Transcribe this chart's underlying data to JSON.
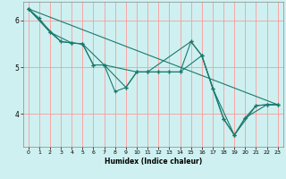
{
  "xlabel": "Humidex (Indice chaleur)",
  "bg_color": "#cff0f0",
  "line_color": "#1a7a6e",
  "grid_color": "#ff9999",
  "xlim": [
    -0.5,
    23.5
  ],
  "ylim": [
    3.3,
    6.4
  ],
  "xticks": [
    0,
    1,
    2,
    3,
    4,
    5,
    6,
    7,
    8,
    9,
    10,
    11,
    12,
    13,
    14,
    15,
    16,
    17,
    18,
    19,
    20,
    21,
    22,
    23
  ],
  "yticks": [
    4,
    5,
    6
  ],
  "series1": [
    [
      0,
      6.25
    ],
    [
      1,
      6.05
    ],
    [
      2,
      5.75
    ],
    [
      3,
      5.55
    ],
    [
      4,
      5.52
    ],
    [
      5,
      5.5
    ],
    [
      6,
      5.05
    ],
    [
      7,
      5.05
    ],
    [
      8,
      4.48
    ],
    [
      9,
      4.57
    ],
    [
      10,
      4.9
    ],
    [
      11,
      4.9
    ],
    [
      12,
      4.9
    ],
    [
      13,
      4.9
    ],
    [
      14,
      4.9
    ],
    [
      15,
      5.55
    ],
    [
      16,
      5.25
    ],
    [
      17,
      4.55
    ],
    [
      18,
      3.9
    ],
    [
      19,
      3.55
    ],
    [
      20,
      3.92
    ],
    [
      21,
      4.18
    ],
    [
      22,
      4.2
    ],
    [
      23,
      4.2
    ]
  ],
  "series2": [
    [
      0,
      6.25
    ],
    [
      2,
      5.75
    ],
    [
      4,
      5.52
    ],
    [
      5,
      5.5
    ],
    [
      6,
      5.05
    ],
    [
      7,
      5.05
    ],
    [
      10,
      4.9
    ],
    [
      11,
      4.9
    ],
    [
      12,
      4.9
    ],
    [
      13,
      4.9
    ],
    [
      14,
      4.9
    ],
    [
      16,
      5.25
    ],
    [
      18,
      3.9
    ],
    [
      19,
      3.55
    ],
    [
      21,
      4.18
    ],
    [
      22,
      4.2
    ],
    [
      23,
      4.2
    ]
  ],
  "series3": [
    [
      0,
      6.25
    ],
    [
      3,
      5.55
    ],
    [
      4,
      5.52
    ],
    [
      5,
      5.5
    ],
    [
      7,
      5.05
    ],
    [
      9,
      4.57
    ],
    [
      10,
      4.9
    ],
    [
      11,
      4.9
    ],
    [
      15,
      5.55
    ],
    [
      16,
      5.25
    ],
    [
      17,
      4.55
    ],
    [
      19,
      3.55
    ],
    [
      20,
      3.92
    ],
    [
      22,
      4.2
    ],
    [
      23,
      4.2
    ]
  ],
  "series4": [
    [
      0,
      6.25
    ],
    [
      23,
      4.2
    ]
  ]
}
